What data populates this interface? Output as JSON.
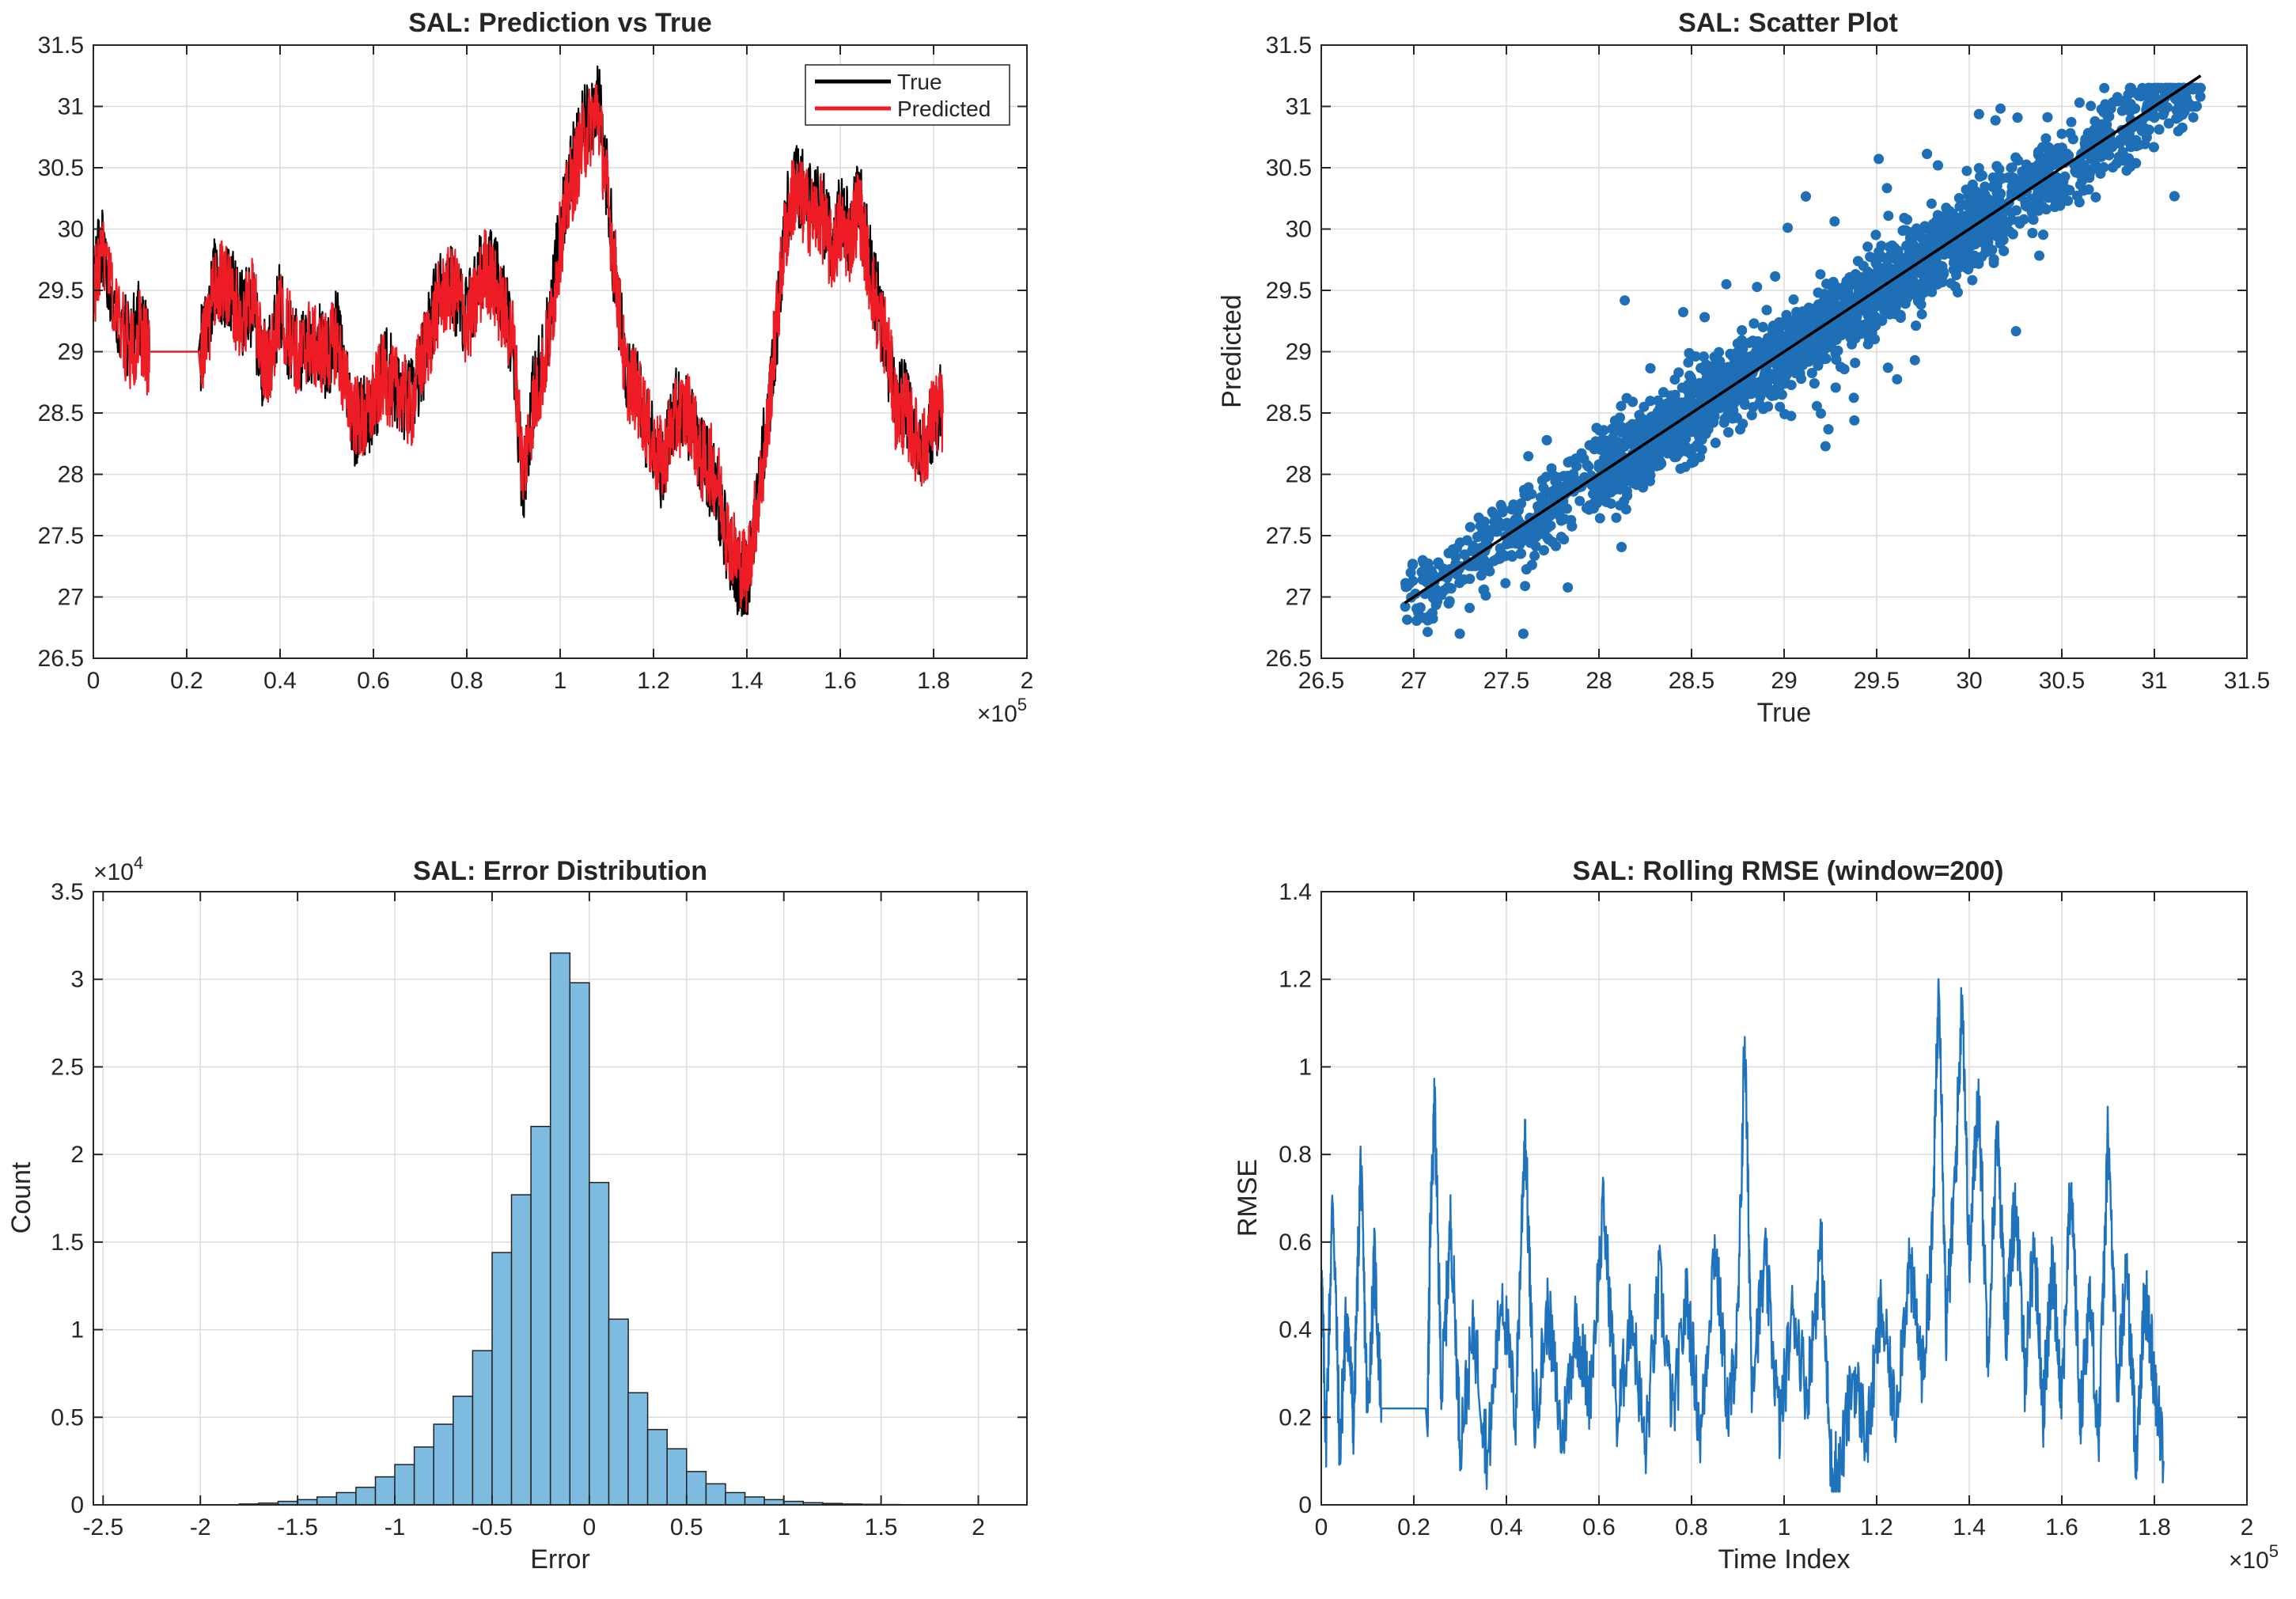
{
  "colors": {
    "true_line": "#000000",
    "predicted_line": "#ee1c25",
    "scatter_points": "#1f6fb6",
    "identity_line": "#000000",
    "histogram_fill": "#7ebbe0",
    "histogram_edge": "#222222",
    "rmse_line": "#1f72bc",
    "grid": "#dcdcdc",
    "axis": "#262626"
  },
  "chart_data": [
    {
      "type": "line",
      "title": "SAL: Prediction vs True",
      "xlabel": "",
      "ylabel": "",
      "xlim": [
        0,
        200000
      ],
      "ylim": [
        26.5,
        31.5
      ],
      "x_ticks": [
        0,
        20000,
        40000,
        60000,
        80000,
        100000,
        120000,
        140000,
        160000,
        180000,
        200000
      ],
      "x_tick_labels": [
        "0",
        "0.2",
        "0.4",
        "0.6",
        "0.8",
        "1",
        "1.2",
        "1.4",
        "1.6",
        "1.8",
        "2"
      ],
      "x_exponent_label": "×10",
      "x_exponent_power": "5",
      "y_ticks": [
        26.5,
        27,
        27.5,
        28,
        28.5,
        29,
        29.5,
        30,
        30.5,
        31,
        31.5
      ],
      "y_tick_labels": [
        "26.5",
        "27",
        "27.5",
        "28",
        "28.5",
        "29",
        "29.5",
        "30",
        "30.5",
        "31",
        "31.5"
      ],
      "grid": true,
      "legend_position": "top-right",
      "series": [
        {
          "name": "True",
          "x": [
            0,
            2000,
            5000,
            8000,
            10000,
            11000,
            12000,
            23000,
            24000,
            26000,
            28000,
            30000,
            32000,
            34000,
            36000,
            38000,
            40000,
            42000,
            44000,
            46000,
            48000,
            50000,
            52000,
            54000,
            56000,
            58000,
            60000,
            62000,
            64000,
            66000,
            68000,
            70000,
            72000,
            74000,
            76000,
            78000,
            80000,
            82000,
            84000,
            86000,
            88000,
            90000,
            92000,
            94000,
            96000,
            98000,
            100000,
            102000,
            104000,
            106000,
            108000,
            110000,
            112000,
            114000,
            116000,
            118000,
            120000,
            122000,
            124000,
            126000,
            128000,
            130000,
            132000,
            134000,
            136000,
            138000,
            140000,
            142000,
            144000,
            146000,
            148000,
            150000,
            152000,
            154000,
            156000,
            158000,
            160000,
            162000,
            164000,
            166000,
            168000,
            170000,
            172000,
            174000,
            176000,
            178000,
            180000,
            182000
          ],
          "values": [
            29.6,
            29.9,
            29.2,
            29.1,
            29.3,
            29.1,
            29.0,
            29.0,
            29.2,
            29.6,
            29.5,
            29.5,
            29.3,
            29.4,
            28.9,
            29.0,
            29.4,
            29.1,
            29.0,
            29.0,
            29.1,
            28.9,
            29.2,
            28.8,
            28.4,
            28.5,
            28.5,
            28.9,
            28.8,
            28.6,
            28.6,
            28.8,
            29.2,
            29.5,
            29.6,
            29.4,
            29.3,
            29.5,
            29.8,
            29.6,
            29.4,
            29.0,
            27.9,
            28.6,
            28.9,
            29.3,
            30.0,
            30.4,
            30.7,
            30.9,
            31.1,
            30.4,
            29.5,
            28.9,
            28.8,
            28.4,
            28.3,
            28.0,
            28.5,
            28.6,
            28.4,
            28.2,
            28.0,
            27.8,
            27.4,
            27.2,
            27.1,
            27.8,
            28.3,
            29.0,
            30.0,
            30.4,
            30.3,
            30.2,
            30.2,
            29.9,
            30.1,
            30.0,
            30.3,
            29.8,
            29.4,
            29.0,
            28.6,
            28.6,
            28.2,
            28.3,
            28.4,
            28.6
          ]
        },
        {
          "name": "Predicted",
          "x": [
            0,
            2000,
            5000,
            8000,
            10000,
            11000,
            12000,
            23000,
            24000,
            26000,
            28000,
            30000,
            32000,
            34000,
            36000,
            38000,
            40000,
            42000,
            44000,
            46000,
            48000,
            50000,
            52000,
            54000,
            56000,
            58000,
            60000,
            62000,
            64000,
            66000,
            68000,
            70000,
            72000,
            74000,
            76000,
            78000,
            80000,
            82000,
            84000,
            86000,
            88000,
            90000,
            92000,
            94000,
            96000,
            98000,
            100000,
            102000,
            104000,
            106000,
            108000,
            110000,
            112000,
            114000,
            116000,
            118000,
            120000,
            122000,
            124000,
            126000,
            128000,
            130000,
            132000,
            134000,
            136000,
            138000,
            140000,
            142000,
            144000,
            146000,
            148000,
            150000,
            152000,
            154000,
            156000,
            158000,
            160000,
            162000,
            164000,
            166000,
            168000,
            170000,
            172000,
            174000,
            176000,
            178000,
            180000,
            182000
          ],
          "values": [
            29.5,
            29.8,
            29.3,
            29.0,
            29.2,
            29.0,
            29.0,
            29.0,
            29.1,
            29.5,
            29.6,
            29.4,
            29.2,
            29.5,
            29.0,
            28.9,
            29.3,
            29.2,
            28.9,
            29.1,
            29.0,
            29.0,
            29.1,
            28.7,
            28.5,
            28.4,
            28.6,
            28.8,
            28.7,
            28.7,
            28.5,
            28.9,
            29.1,
            29.4,
            29.5,
            29.5,
            29.2,
            29.4,
            29.7,
            29.5,
            29.3,
            29.1,
            28.0,
            28.5,
            28.8,
            29.2,
            29.9,
            30.3,
            30.6,
            30.8,
            31.0,
            30.3,
            29.6,
            28.8,
            28.7,
            28.5,
            28.2,
            28.1,
            28.4,
            28.5,
            28.5,
            28.1,
            28.1,
            27.9,
            27.5,
            27.3,
            27.2,
            27.7,
            28.2,
            29.1,
            29.9,
            30.3,
            30.2,
            30.1,
            30.1,
            29.8,
            30.0,
            29.9,
            30.2,
            29.7,
            29.3,
            29.1,
            28.5,
            28.5,
            28.3,
            28.2,
            28.5,
            28.5
          ]
        }
      ]
    },
    {
      "type": "scatter",
      "title": "SAL: Scatter Plot",
      "xlabel": "True",
      "ylabel": "Predicted",
      "xlim": [
        26.5,
        31.5
      ],
      "ylim": [
        26.5,
        31.5
      ],
      "x_ticks": [
        26.5,
        27,
        27.5,
        28,
        28.5,
        29,
        29.5,
        30,
        30.5,
        31,
        31.5
      ],
      "x_tick_labels": [
        "26.5",
        "27",
        "27.5",
        "28",
        "28.5",
        "29",
        "29.5",
        "30",
        "30.5",
        "31",
        "31.5"
      ],
      "y_ticks": [
        26.5,
        27,
        27.5,
        28,
        28.5,
        29,
        29.5,
        30,
        30.5,
        31,
        31.5
      ],
      "y_tick_labels": [
        "26.5",
        "27",
        "27.5",
        "28",
        "28.5",
        "29",
        "29.5",
        "30",
        "30.5",
        "31",
        "31.5"
      ],
      "grid": true,
      "true_range": [
        26.95,
        31.25
      ],
      "spread": 0.32,
      "identity_line": {
        "x": [
          26.95,
          31.25
        ],
        "y": [
          26.95,
          31.25
        ]
      }
    },
    {
      "type": "bar",
      "title": "SAL: Error Distribution",
      "xlabel": "Error",
      "ylabel": "Count",
      "xlim": [
        -2.55,
        2.25
      ],
      "ylim": [
        0,
        35000
      ],
      "x_ticks": [
        -2.5,
        -2,
        -1.5,
        -1,
        -0.5,
        0,
        0.5,
        1,
        1.5,
        2
      ],
      "x_tick_labels": [
        "-2.5",
        "-2",
        "-1.5",
        "-1",
        "-0.5",
        "0",
        "0.5",
        "1",
        "1.5",
        "2"
      ],
      "y_ticks": [
        0,
        5000,
        10000,
        15000,
        20000,
        25000,
        30000,
        35000
      ],
      "y_tick_labels": [
        "0",
        "0.5",
        "1",
        "1.5",
        "2",
        "2.5",
        "3",
        "3.5"
      ],
      "y_exponent_label": "×10",
      "y_exponent_power": "4",
      "grid": true,
      "bin_width": 0.1,
      "bin_centers": [
        -1.75,
        -1.65,
        -1.55,
        -1.45,
        -1.35,
        -1.25,
        -1.15,
        -1.05,
        -0.95,
        -0.85,
        -0.75,
        -0.65,
        -0.55,
        -0.45,
        -0.35,
        -0.25,
        -0.15,
        -0.05,
        0.05,
        0.15,
        0.25,
        0.35,
        0.45,
        0.55,
        0.65,
        0.75,
        0.85,
        0.95,
        1.05,
        1.15,
        1.25,
        1.35,
        1.45,
        1.55
      ],
      "values": [
        50,
        100,
        200,
        300,
        450,
        700,
        1000,
        1600,
        2300,
        3300,
        4600,
        6200,
        8800,
        14400,
        17700,
        21600,
        31500,
        29800,
        18400,
        10600,
        6400,
        4300,
        3200,
        1900,
        1200,
        700,
        450,
        300,
        200,
        120,
        80,
        50,
        30,
        20
      ]
    },
    {
      "type": "line",
      "title": "SAL: Rolling RMSE (window=200)",
      "xlabel": "Time Index",
      "ylabel": "RMSE",
      "xlim": [
        0,
        200000
      ],
      "ylim": [
        0,
        1.4
      ],
      "x_ticks": [
        0,
        20000,
        40000,
        60000,
        80000,
        100000,
        120000,
        140000,
        160000,
        180000,
        200000
      ],
      "x_tick_labels": [
        "0",
        "0.2",
        "0.4",
        "0.6",
        "0.8",
        "1",
        "1.2",
        "1.4",
        "1.6",
        "1.8",
        "2"
      ],
      "x_exponent_label": "×10",
      "x_exponent_power": "5",
      "y_ticks": [
        0,
        0.2,
        0.4,
        0.6,
        0.8,
        1,
        1.2,
        1.4
      ],
      "y_tick_labels": [
        "0",
        "0.2",
        "0.4",
        "0.6",
        "0.8",
        "1",
        "1.2",
        "1.4"
      ],
      "grid": true,
      "series": [
        {
          "name": "",
          "x": [
            0,
            1000,
            2500,
            4000,
            5500,
            7000,
            8500,
            10000,
            11500,
            13000,
            23000,
            23500,
            24500,
            26000,
            28000,
            30000,
            33000,
            36000,
            39000,
            42000,
            44000,
            46000,
            49000,
            52000,
            55000,
            58000,
            61000,
            64000,
            67000,
            70000,
            73000,
            76000,
            79000,
            82000,
            85000,
            88000,
            90000,
            91500,
            93000,
            96000,
            99000,
            102000,
            105000,
            108000,
            110000,
            112000,
            115000,
            118000,
            121000,
            124000,
            127000,
            130000,
            132000,
            133500,
            135000,
            137000,
            138500,
            140000,
            142000,
            144000,
            146000,
            148000,
            150000,
            152000,
            154000,
            156000,
            158000,
            160000,
            162000,
            164000,
            166000,
            168000,
            170000,
            172000,
            174000,
            176000,
            178000,
            180000,
            182000
          ],
          "values": [
            0.55,
            0.15,
            0.72,
            0.12,
            0.45,
            0.18,
            0.78,
            0.2,
            0.56,
            0.22,
            0.22,
            0.6,
            0.91,
            0.25,
            0.65,
            0.15,
            0.4,
            0.1,
            0.5,
            0.2,
            0.88,
            0.18,
            0.45,
            0.14,
            0.42,
            0.25,
            0.68,
            0.18,
            0.45,
            0.12,
            0.52,
            0.2,
            0.48,
            0.15,
            0.6,
            0.2,
            0.4,
            1.08,
            0.3,
            0.55,
            0.18,
            0.45,
            0.25,
            0.6,
            0.1,
            0.08,
            0.3,
            0.15,
            0.45,
            0.2,
            0.55,
            0.3,
            0.6,
            1.23,
            0.4,
            0.75,
            1.18,
            0.55,
            0.95,
            0.35,
            0.85,
            0.4,
            0.7,
            0.3,
            0.6,
            0.22,
            0.55,
            0.25,
            0.75,
            0.2,
            0.48,
            0.15,
            0.85,
            0.25,
            0.55,
            0.12,
            0.48,
            0.3,
            0.1
          ]
        }
      ]
    }
  ]
}
